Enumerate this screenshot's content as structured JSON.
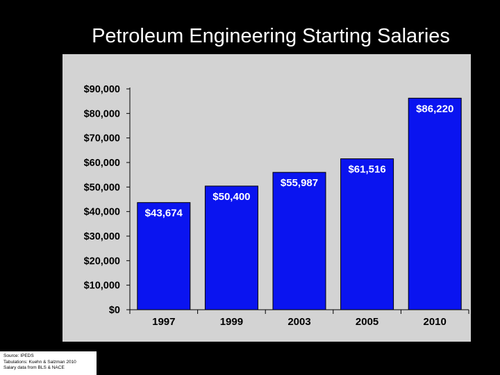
{
  "slide": {
    "title": "Petroleum Engineering Starting Salaries",
    "source_lines": [
      "Source: IPEDS",
      "Tabulations: Kuehn & Salzman 2010",
      "Salary data from BLS & NACE"
    ]
  },
  "colors": {
    "background": "#000000",
    "plot_area": "#d3d3d3",
    "bar_fill": "#0a14f0",
    "bar_stroke": "#000000",
    "data_label": "#ffffff"
  },
  "chart_data": {
    "type": "bar",
    "title": "Petroleum Engineering Starting Salaries",
    "xlabel": "",
    "ylabel": "",
    "categories": [
      "1997",
      "1999",
      "2003",
      "2005",
      "2010"
    ],
    "values": [
      43674,
      50400,
      55987,
      61516,
      86220
    ],
    "data_labels": [
      "$43,674",
      "$50,400",
      "$55,987",
      "$61,516",
      "$86,220"
    ],
    "ylim": [
      0,
      90000
    ],
    "yticks": [
      0,
      10000,
      20000,
      30000,
      40000,
      50000,
      60000,
      70000,
      80000,
      90000
    ],
    "ytick_labels": [
      "$0",
      "$10,000",
      "$20,000",
      "$30,000",
      "$40,000",
      "$50,000",
      "$60,000",
      "$70,000",
      "$80,000",
      "$90,000"
    ],
    "grid": false,
    "legend": "none"
  }
}
